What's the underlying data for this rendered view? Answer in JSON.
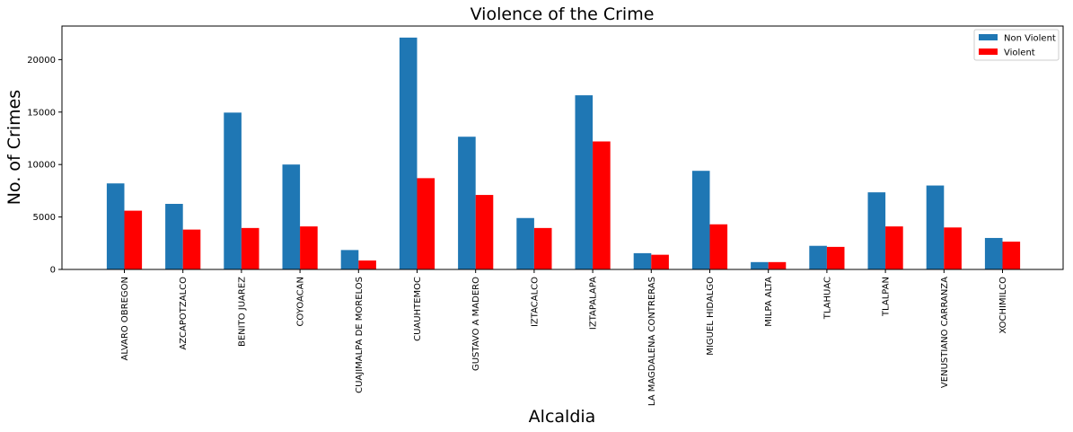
{
  "chart_data": {
    "type": "bar",
    "title": "Violence of the Crime",
    "xlabel": "Alcaldia",
    "ylabel": "No. of Crimes",
    "categories": [
      "ALVARO OBREGON",
      "AZCAPOTZALCO",
      "BENITO JUAREZ",
      "COYOACAN",
      "CUAJIMALPA DE MORELOS",
      "CUAUHTEMOC",
      "GUSTAVO A MADERO",
      "IZTACALCO",
      "IZTAPALAPA",
      "LA MAGDALENA CONTRERAS",
      "MIGUEL HIDALGO",
      "MILPA ALTA",
      "TLAHUAC",
      "TLALPAN",
      "VENUSTIANO CARRANZA",
      "XOCHIMILCO"
    ],
    "series": [
      {
        "name": "Non Violent",
        "color": "#1f77b4",
        "values": [
          8200,
          6250,
          14950,
          10000,
          1850,
          22100,
          12650,
          4900,
          16600,
          1550,
          9400,
          700,
          2250,
          7350,
          8000,
          3000
        ]
      },
      {
        "name": "Violent",
        "color": "#ff0000",
        "values": [
          5600,
          3800,
          3950,
          4100,
          850,
          8700,
          7100,
          3950,
          12200,
          1400,
          4300,
          700,
          2150,
          4100,
          4000,
          2650
        ]
      }
    ],
    "ylim": [
      0,
      23200
    ],
    "yticks": [
      "0",
      "5000",
      "10000",
      "15000",
      "20000"
    ],
    "grid": false,
    "legend_position": "top-right"
  }
}
